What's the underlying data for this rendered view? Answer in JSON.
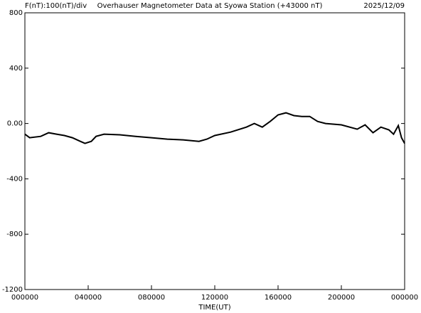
{
  "chart_data": {
    "type": "line",
    "title": "Overhauser Magnetometer Data at Syowa Station (+43000 nT)",
    "scale_label": "F(nT):100(nT)/div",
    "date": "2025/12/09",
    "x_label": "TIME(UT)",
    "color": "#000000",
    "x": [
      0,
      0.3,
      1,
      1.5,
      2,
      2.5,
      3,
      3.5,
      3.8,
      4.2,
      4.5,
      5,
      6,
      7,
      8,
      9,
      10,
      11,
      11.5,
      12,
      13,
      14,
      14.5,
      15,
      15.5,
      16,
      16.5,
      17,
      17.5,
      18,
      18.5,
      19,
      20,
      21,
      21.5,
      22,
      22.5,
      23,
      23.3,
      23.6,
      23.8,
      24
    ],
    "values": [
      -77,
      -103,
      -93,
      -67,
      -77,
      -87,
      -103,
      -129,
      -144,
      -129,
      -93,
      -77,
      -82,
      -93,
      -103,
      -113,
      -118,
      -129,
      -113,
      -87,
      -62,
      -26,
      0,
      -26,
      15,
      62,
      77,
      57,
      51,
      51,
      15,
      0,
      -10,
      -41,
      -10,
      -67,
      -26,
      -46,
      -77,
      -15,
      -103,
      -144
    ],
    "xlim": [
      0,
      24
    ],
    "xticks": [
      {
        "value": 0,
        "label": "000000"
      },
      {
        "value": 4,
        "label": "040000"
      },
      {
        "value": 8,
        "label": "080000"
      },
      {
        "value": 12,
        "label": "120000"
      },
      {
        "value": 16,
        "label": "160000"
      },
      {
        "value": 20,
        "label": "200000"
      },
      {
        "value": 24,
        "label": "000000"
      }
    ],
    "ylim": [
      -1200,
      800
    ],
    "yticks": [
      -1200,
      -800,
      -400,
      {
        "value": 0,
        "label": "0.00"
      },
      400,
      800
    ]
  }
}
